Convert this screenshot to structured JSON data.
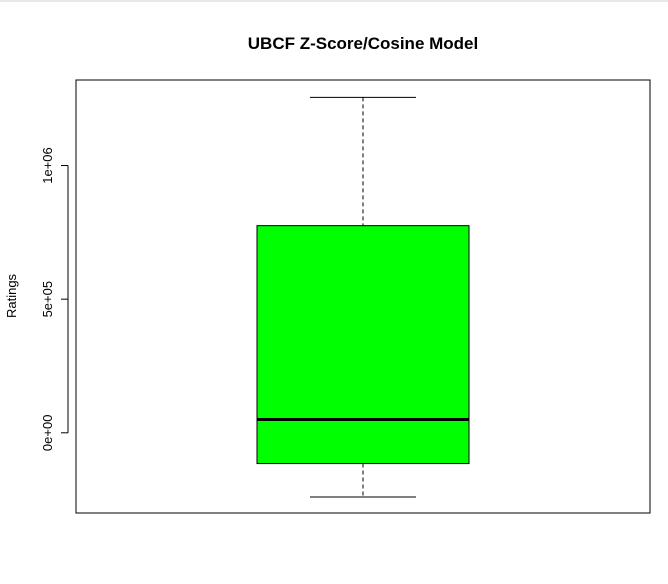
{
  "chart_data": {
    "type": "box",
    "title": "UBCF Z-Score/Cosine Model",
    "xlabel": "",
    "ylabel": "Ratings",
    "ylim": [
      -300000,
      1320000
    ],
    "y_ticks": [
      {
        "value": 0,
        "label": "0e+00"
      },
      {
        "value": 500000,
        "label": "5e+05"
      },
      {
        "value": 1000000,
        "label": "1e+06"
      }
    ],
    "box": {
      "whisker_low": -240000,
      "q1": -115000,
      "median": 50000,
      "q3": 775000,
      "whisker_high": 1255000
    },
    "fill_color": "#00ff00",
    "grid": false,
    "legend": "none"
  }
}
